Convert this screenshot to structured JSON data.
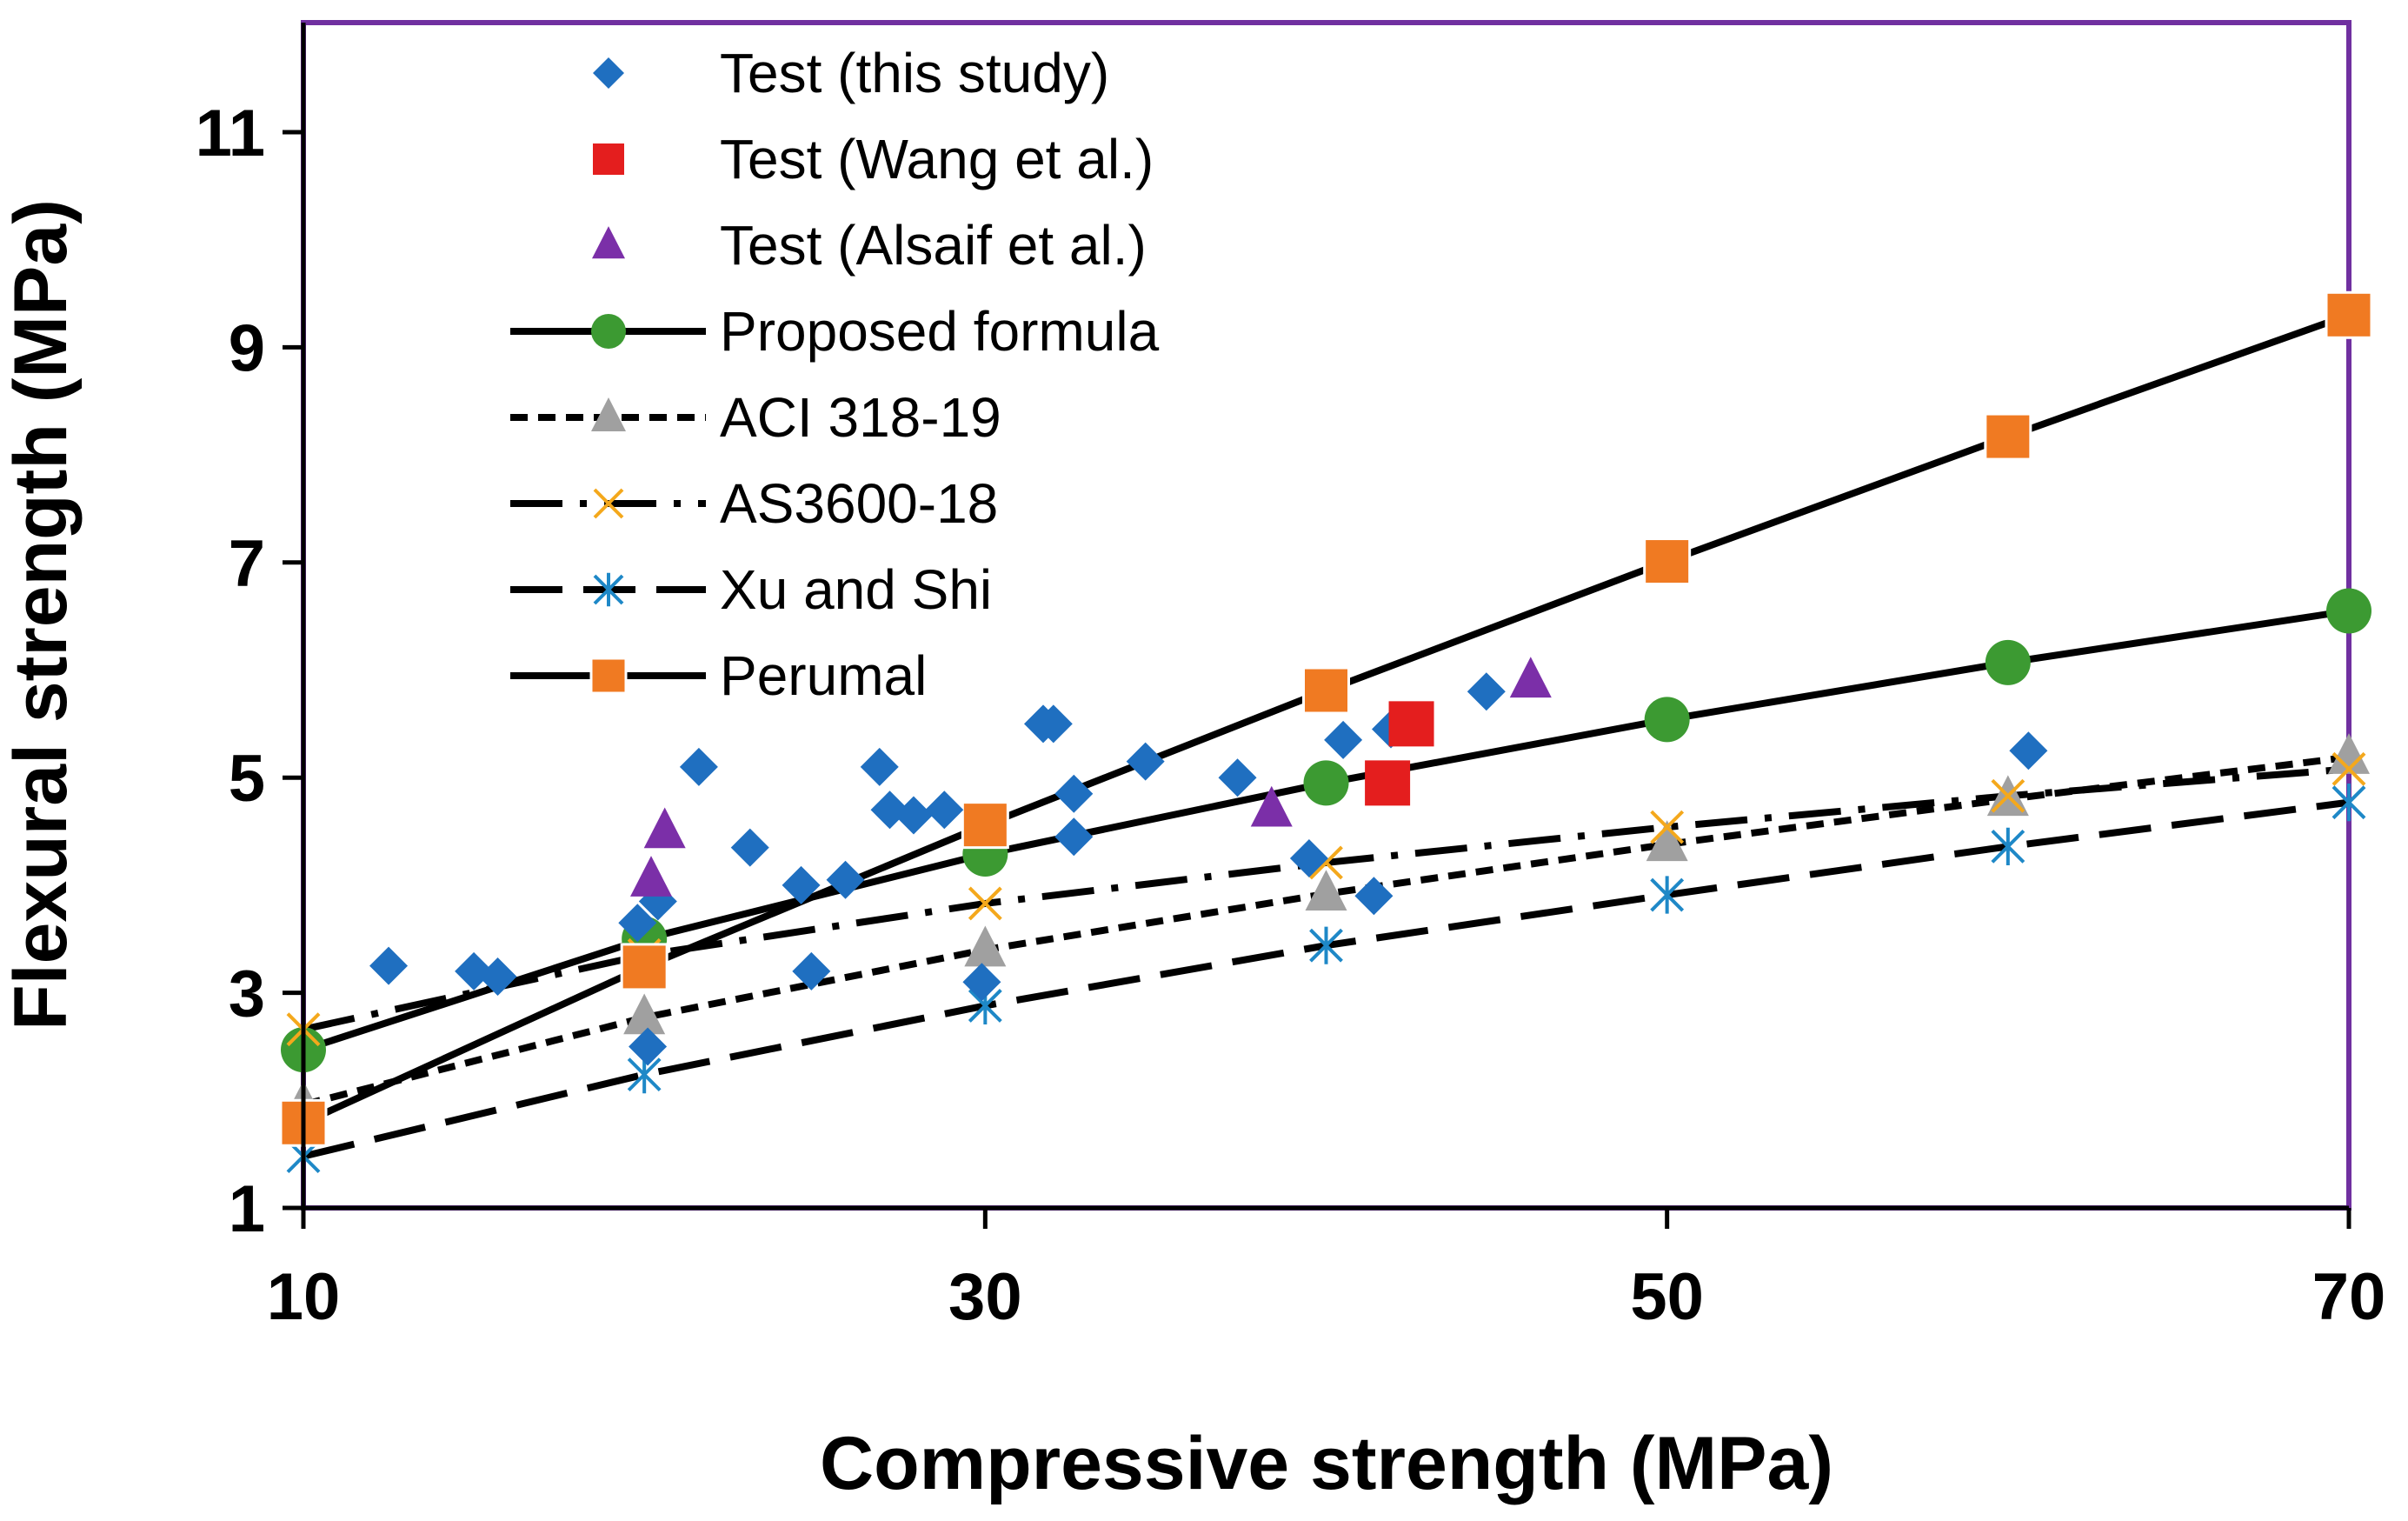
{
  "chart_data": {
    "type": "scatter",
    "title": "",
    "xlabel": "Compressive strength (MPa)",
    "ylabel": "Flexural strength (MPa)",
    "xlim": [
      10,
      70
    ],
    "ylim": [
      1,
      12
    ],
    "x_ticks": [
      "10",
      "30",
      "50",
      "70"
    ],
    "y_ticks": [
      "1",
      "3",
      "5",
      "7",
      "9",
      "11"
    ],
    "grid": false,
    "legend_position": "top-left",
    "colors": {
      "frame": "#7030A0",
      "axis": "#000000",
      "blue": "#1F6FC0",
      "red": "#E41E1E",
      "purple": "#7B2FA8",
      "green": "#3C9A32",
      "gray": "#A0A0A0",
      "orange_x": "#F4A81C",
      "cyan": "#1E88C7",
      "orange": "#F07A22"
    },
    "series": [
      {
        "name": "Test (this study)",
        "kind": "scatter",
        "marker": "diamond",
        "color": "#1F6FC0",
        "line": "none",
        "x": [
          12.5,
          15,
          15.7,
          19.8,
          20.1,
          20.4,
          21.6,
          23.1,
          24.6,
          24.9,
          25.9,
          26.9,
          27.2,
          27.9,
          28.8,
          29.9,
          31.7,
          32,
          32.6,
          32.6,
          34.7,
          37.4,
          39.5,
          40.5,
          41.4,
          41.9,
          44.7,
          60.6
        ],
        "y": [
          3.25,
          3.2,
          3.15,
          3.65,
          2.5,
          3.85,
          5.1,
          4.35,
          4.0,
          3.2,
          4.05,
          5.1,
          4.7,
          4.65,
          4.7,
          3.1,
          5.5,
          5.5,
          4.45,
          4.85,
          5.15,
          5.0,
          4.25,
          5.35,
          3.9,
          5.45,
          5.8,
          5.25
        ]
      },
      {
        "name": "Test (Wang et al.)",
        "kind": "scatter",
        "marker": "square",
        "color": "#E41E1E",
        "line": "none",
        "x": [
          42.5,
          41.8
        ],
        "y": [
          5.5,
          4.95
        ]
      },
      {
        "name": "Test (Alsaif et al.)",
        "kind": "scatter",
        "marker": "triangle",
        "color": "#7B2FA8",
        "line": "none",
        "x": [
          20.2,
          20.6,
          38.4,
          46
        ],
        "y": [
          4.05,
          4.5,
          4.7,
          5.9
        ]
      },
      {
        "name": "Proposed formula",
        "kind": "line",
        "marker": "circle",
        "color": "#3C9A32",
        "line": "solid",
        "x": [
          10,
          20,
          30,
          40,
          50,
          60,
          70
        ],
        "y": [
          2.47,
          3.5,
          4.29,
          4.95,
          5.54,
          6.07,
          6.55
        ]
      },
      {
        "name": "ACI 318-19",
        "kind": "line",
        "marker": "triangle",
        "color": "#A0A0A0",
        "line": "dashed",
        "x": [
          10,
          20,
          30,
          40,
          50,
          60,
          70
        ],
        "y": [
          1.96,
          2.77,
          3.4,
          3.92,
          4.38,
          4.8,
          5.19
        ]
      },
      {
        "name": "AS3600-18",
        "kind": "line",
        "marker": "x",
        "color": "#F4A81C",
        "line": "dashdot",
        "x": [
          10,
          20,
          30,
          40,
          50,
          60,
          70
        ],
        "y": [
          2.66,
          3.35,
          3.83,
          4.21,
          4.54,
          4.83,
          5.08
        ]
      },
      {
        "name": "Xu and Shi",
        "kind": "line",
        "marker": "asterisk",
        "color": "#1E88C7",
        "line": "longdash",
        "x": [
          10,
          20,
          30,
          40,
          50,
          60,
          70
        ],
        "y": [
          1.48,
          2.24,
          2.88,
          3.44,
          3.91,
          4.36,
          4.77
        ]
      },
      {
        "name": "Perumal",
        "kind": "line",
        "marker": "square",
        "color": "#F07A22",
        "line": "solid",
        "x": [
          10,
          20,
          30,
          40,
          50,
          60,
          70
        ],
        "y": [
          1.79,
          3.24,
          4.56,
          5.81,
          7.01,
          8.17,
          9.3
        ]
      }
    ]
  }
}
